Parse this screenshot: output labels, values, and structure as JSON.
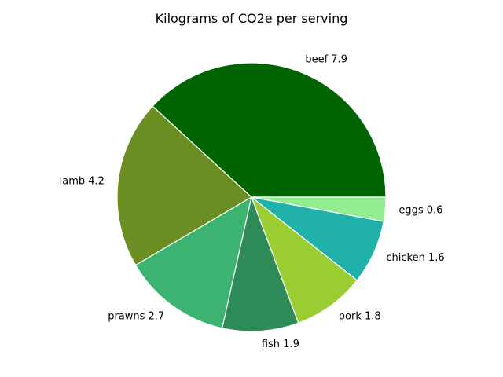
{
  "chart_data": {
    "type": "pie",
    "title": "Kilograms of CO2e per serving",
    "start_angle": "0° (3 o'clock)",
    "direction": "counter-clockwise",
    "slices": [
      {
        "label": "beef 7.9",
        "value": 7.9,
        "color": "#006400"
      },
      {
        "label": "lamb 4.2",
        "value": 4.2,
        "color": "#6b8e23"
      },
      {
        "label": "prawns 2.7",
        "value": 2.7,
        "color": "#3cb371"
      },
      {
        "label": "fish 1.9",
        "value": 1.9,
        "color": "#2e8b57"
      },
      {
        "label": "pork 1.8",
        "value": 1.8,
        "color": "#9acd32"
      },
      {
        "label": "chicken 1.6",
        "value": 1.6,
        "color": "#20b2aa"
      },
      {
        "label": "eggs 0.6",
        "value": 0.6,
        "color": "#90ee90"
      }
    ]
  }
}
